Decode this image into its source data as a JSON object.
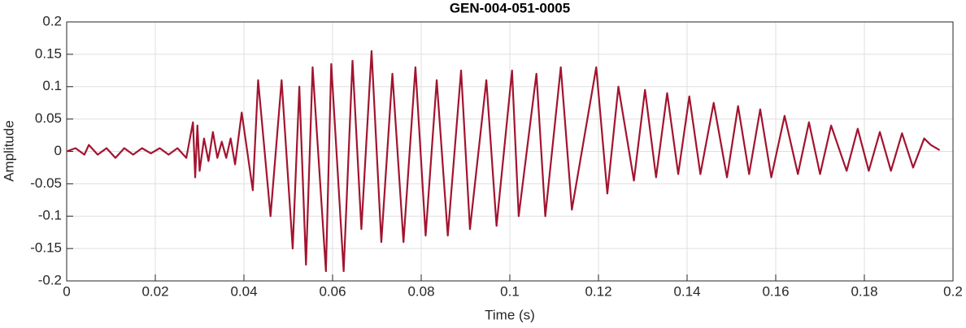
{
  "chart_data": {
    "type": "line",
    "title": "GEN-004-051-0005",
    "xlabel": "Time (s)",
    "ylabel": "Amplitude",
    "xlim": [
      0,
      0.2
    ],
    "ylim": [
      -0.2,
      0.2
    ],
    "xticks": [
      0,
      0.02,
      0.04,
      0.06,
      0.08,
      0.1,
      0.12,
      0.14,
      0.16,
      0.18,
      0.2
    ],
    "yticks": [
      -0.2,
      -0.15,
      -0.1,
      -0.05,
      0,
      0.05,
      0.1,
      0.15,
      0.2
    ],
    "grid": true,
    "series": [
      {
        "color": "#a2142f",
        "x": [
          0,
          0.002,
          0.004,
          0.005,
          0.007,
          0.009,
          0.011,
          0.013,
          0.015,
          0.017,
          0.019,
          0.021,
          0.023,
          0.025,
          0.027,
          0.0285,
          0.029,
          0.0295,
          0.03,
          0.031,
          0.032,
          0.033,
          0.034,
          0.035,
          0.036,
          0.037,
          0.038,
          0.0395,
          0.042,
          0.0432,
          0.046,
          0.0485,
          0.051,
          0.0525,
          0.054,
          0.0555,
          0.0585,
          0.0597,
          0.0625,
          0.0645,
          0.0665,
          0.0688,
          0.071,
          0.0735,
          0.076,
          0.0787,
          0.081,
          0.0835,
          0.086,
          0.089,
          0.091,
          0.0947,
          0.097,
          0.1005,
          0.102,
          0.106,
          0.108,
          0.1115,
          0.114,
          0.1195,
          0.122,
          0.1245,
          0.128,
          0.1305,
          0.133,
          0.1355,
          0.138,
          0.1405,
          0.143,
          0.146,
          0.149,
          0.1515,
          0.154,
          0.1565,
          0.159,
          0.162,
          0.165,
          0.1675,
          0.17,
          0.1725,
          0.176,
          0.1785,
          0.181,
          0.1835,
          0.186,
          0.1885,
          0.191,
          0.1935,
          0.195,
          0.197
        ],
        "values": [
          0,
          0.005,
          -0.005,
          0.01,
          -0.005,
          0.005,
          -0.01,
          0.005,
          -0.005,
          0.005,
          -0.003,
          0.005,
          -0.005,
          0.005,
          -0.01,
          0.045,
          -0.04,
          0.04,
          -0.03,
          0.02,
          -0.015,
          0.03,
          -0.01,
          0.015,
          -0.01,
          0.02,
          -0.02,
          0.06,
          -0.06,
          0.11,
          -0.1,
          0.11,
          -0.15,
          0.1,
          -0.175,
          0.13,
          -0.185,
          0.135,
          -0.185,
          0.14,
          -0.12,
          0.155,
          -0.14,
          0.12,
          -0.14,
          0.13,
          -0.13,
          0.11,
          -0.13,
          0.125,
          -0.12,
          0.11,
          -0.115,
          0.125,
          -0.1,
          0.12,
          -0.1,
          0.13,
          -0.09,
          0.13,
          -0.065,
          0.1,
          -0.045,
          0.095,
          -0.04,
          0.09,
          -0.035,
          0.085,
          -0.035,
          0.075,
          -0.04,
          0.07,
          -0.035,
          0.065,
          -0.04,
          0.055,
          -0.035,
          0.045,
          -0.035,
          0.04,
          -0.03,
          0.035,
          -0.03,
          0.03,
          -0.03,
          0.028,
          -0.025,
          0.02,
          0.01,
          0.002
        ]
      }
    ]
  }
}
